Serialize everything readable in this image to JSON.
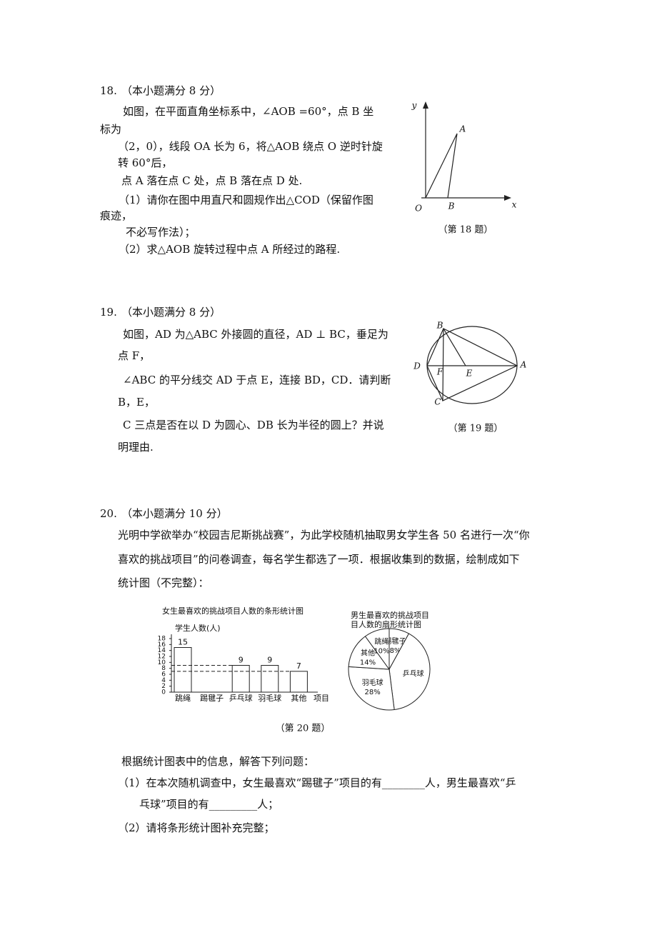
{
  "problems": [
    {
      "number": "18.",
      "score": "（本小题满分 8 分）",
      "lines": [
        "如图，在平面直角坐标系中，∠AOB =60°，点 B 坐",
        "标为",
        "（2，0），线段 OA 长为 6，将△AOB 绕点 O 逆时针旋",
        "转 60°后，",
        "点 A 落在点 C 处，点 B 落在点 D 处.",
        "（1）请你在图中用直尺和圆规作出△COD（保留作图",
        "痕迹，",
        "不必写作法）；",
        "（2）求△AOB 旋转过程中点 A 所经过的路程."
      ],
      "figure": {
        "labels": [
          "y",
          "A",
          "x",
          "O",
          "B"
        ],
        "caption": "（第 18 题）"
      }
    },
    {
      "number": "19.",
      "score": "（本小题满分 8 分）",
      "lines": [
        "如图，AD 为△ABC 外接圆的直径，AD ⊥ BC，垂足为",
        "点 F，",
        "∠ABC 的平分线交 AD 于点 E，连接 BD，CD．请判断",
        "B，E，",
        "C 三点是否在以 D 为圆心、DB 长为半径的圆上？并说",
        "明理由."
      ],
      "figure": {
        "labels": [
          "B",
          "D",
          "F",
          "E",
          "A",
          "C"
        ],
        "caption": "（第 19 题）"
      }
    },
    {
      "number": "20.",
      "score": "（本小题满分 10 分）",
      "lines": [
        "光明中学欲举办“校园吉尼斯挑战赛”，为此学校随机抽取男女学生各 50 名进行一次“你",
        "喜欢的挑战项目”的问卷调查，每名学生都选了一项．根据收集到的数据，绘制成如下",
        "统计图（不完整）："
      ],
      "figure": {
        "bar": {
          "type": "bar",
          "title": "女生最喜欢的挑战项目人数的条形统计图",
          "y_label": "学生人数(人)",
          "x_label": "项目",
          "categories": [
            "跳绳",
            "踢毽子",
            "乒乓球",
            "羽毛球",
            "其他"
          ],
          "values": [
            15,
            null,
            9,
            9,
            7
          ],
          "ylim": [
            0,
            18
          ],
          "yticks": [
            0,
            2,
            4,
            6,
            8,
            10,
            12,
            14,
            16,
            18
          ]
        },
        "pie": {
          "type": "pie",
          "title": [
            "男生最喜欢的挑战项目",
            "目人数的扇形统计图"
          ],
          "categories": [
            "踢毽子",
            "乒乓球",
            "羽毛球",
            "其他",
            "跳绳"
          ],
          "values": [
            8,
            40,
            28,
            14,
            10
          ],
          "value_labels": [
            "8%",
            null,
            "28%",
            "14%",
            "10%"
          ]
        },
        "caption": "（第 20 题）"
      },
      "after_lines": [
        "根据统计图表中的信息，解答下列问题：",
        "（1）在本次随机调查中，女生最喜欢“踢毽子”项目的有________人，男生最喜欢“乒",
        "乓球”项目的有_________人；",
        "（2）请将条形统计图补充完整；"
      ]
    }
  ]
}
